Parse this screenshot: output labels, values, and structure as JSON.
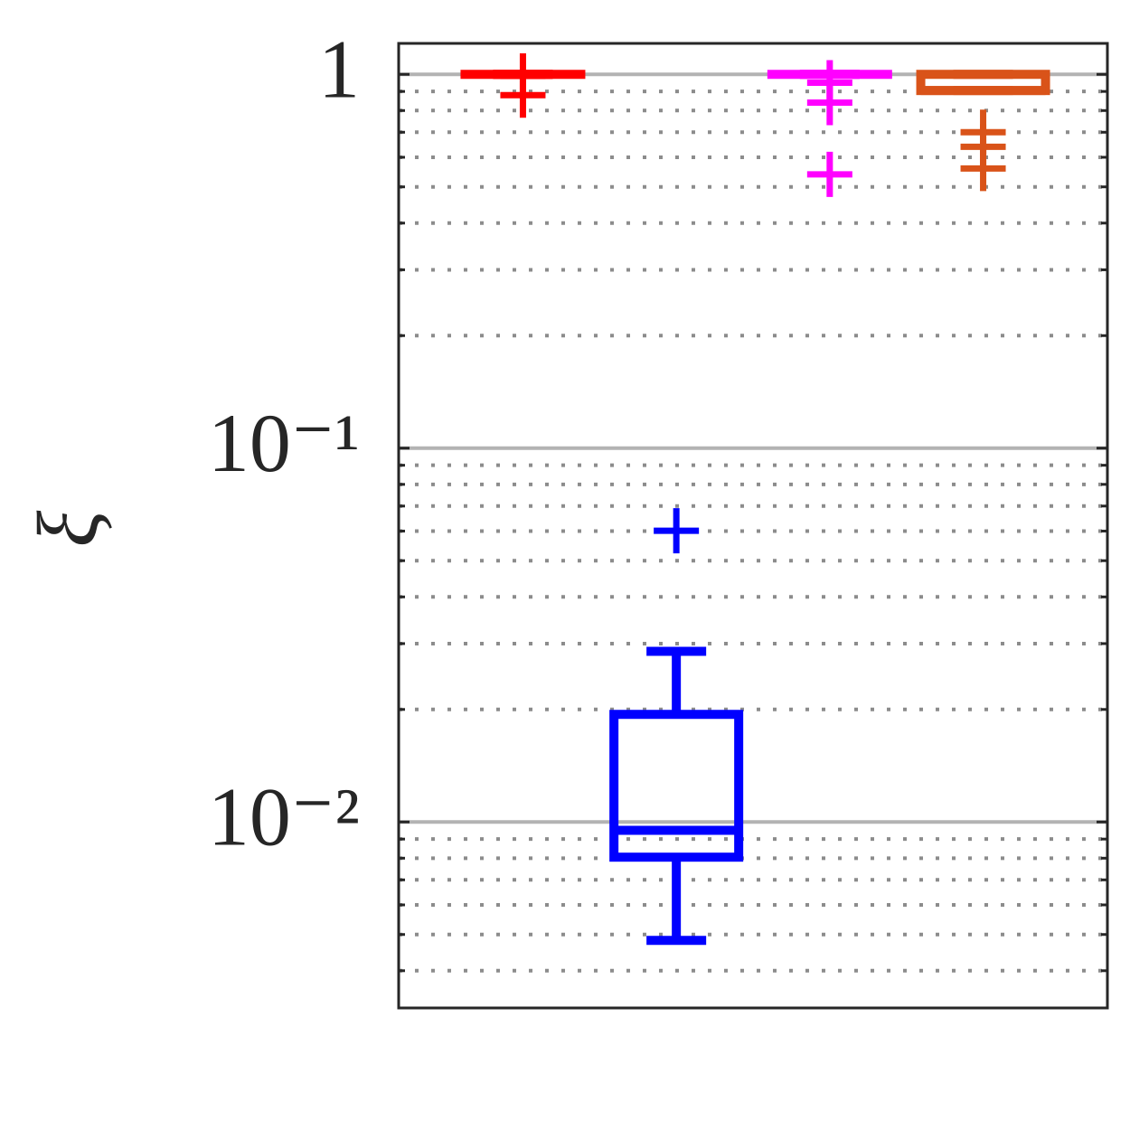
{
  "chart_data": {
    "type": "box",
    "ylabel": "ξ",
    "yscale": "log",
    "ylim": [
      0.00318,
      1.21
    ],
    "yticks": [
      {
        "value": 0.01,
        "label": "10⁻²"
      },
      {
        "value": 0.1,
        "label": "10⁻¹"
      },
      1
    ],
    "minor_yticks": [
      0.004,
      0.005,
      0.006,
      0.007,
      0.008,
      0.009,
      0.02,
      0.03,
      0.04,
      0.05,
      0.06,
      0.07,
      0.08,
      0.09,
      0.2,
      0.3,
      0.4,
      0.5,
      0.6,
      0.7,
      0.8,
      0.9
    ],
    "grid": true,
    "minor_grid": true,
    "xlim": [
      0.19,
      4.81
    ],
    "boxes": [
      {
        "color": "#ff0000",
        "whisker_low": 1,
        "q1": 1,
        "median": 1,
        "q3": 1,
        "whisker_high": 1,
        "outliers": [
          0.99,
          0.88
        ]
      },
      {
        "color": "#0000ff",
        "whisker_low": 0.00482,
        "q1": 0.00805,
        "median": 0.0095,
        "q3": 0.0194,
        "whisker_high": 0.0286,
        "outliers": [
          0.0601
        ]
      },
      {
        "color": "#ff00ff",
        "whisker_low": 1,
        "q1": 1,
        "median": 1,
        "q3": 1,
        "whisker_high": 1,
        "outliers": [
          0.95,
          0.84,
          0.54
        ]
      },
      {
        "color": "#d95319",
        "whisker_low": 0.905,
        "q1": 0.905,
        "median": 0.905,
        "q3": 1,
        "whisker_high": 1,
        "outliers": [
          0.7,
          0.64,
          0.56
        ]
      }
    ]
  }
}
